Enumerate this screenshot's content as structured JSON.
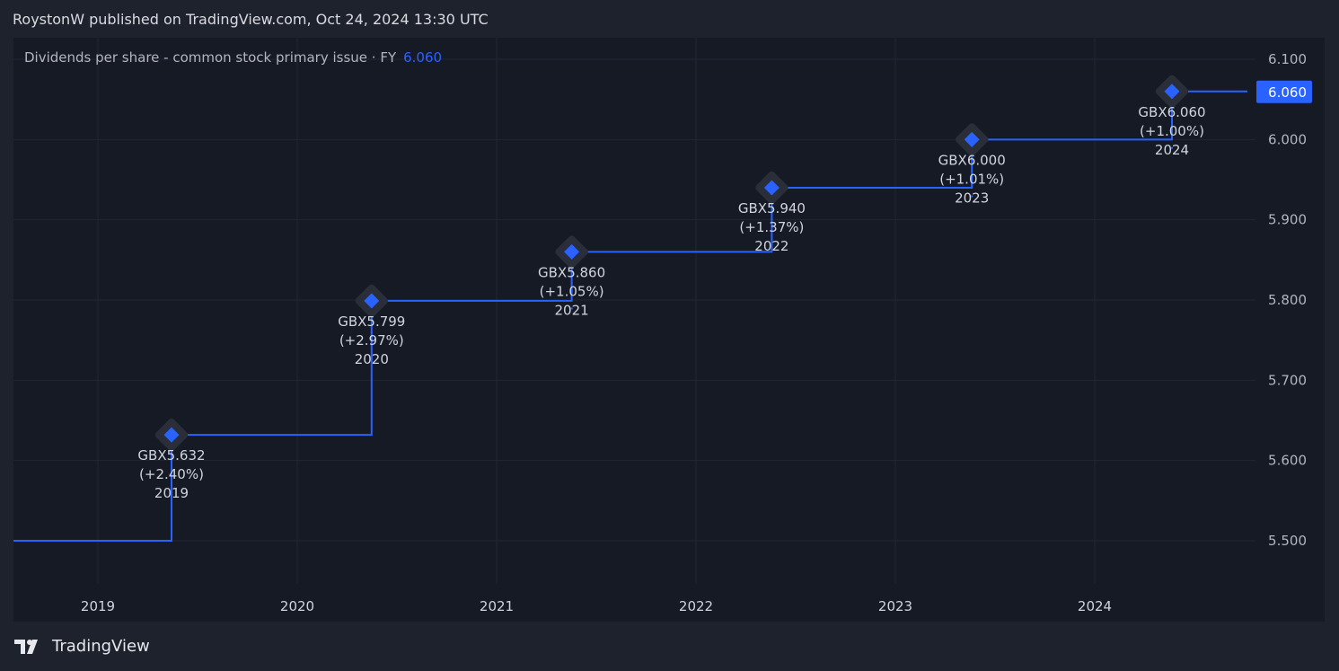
{
  "header": {
    "published": "RoystonW published on TradingView.com, Oct 24, 2024 13:30 UTC"
  },
  "legend": {
    "label": "Dividends per share - common stock primary issue · FY",
    "value": "6.060"
  },
  "brand": {
    "name": "TradingView"
  },
  "colors": {
    "line": "#2962ff",
    "bg": "#161a25"
  },
  "chart_data": {
    "type": "line",
    "step": true,
    "title": "Dividends per share - common stock primary issue · FY",
    "currency": "GBX",
    "start_value": 5.5,
    "points": [
      {
        "year": "2019",
        "value": 5.632,
        "label": "GBX5.632",
        "change": "(+2.40%)"
      },
      {
        "year": "2020",
        "value": 5.799,
        "label": "GBX5.799",
        "change": "(+2.97%)"
      },
      {
        "year": "2021",
        "value": 5.86,
        "label": "GBX5.860",
        "change": "(+1.05%)"
      },
      {
        "year": "2022",
        "value": 5.94,
        "label": "GBX5.940",
        "change": "(+1.37%)"
      },
      {
        "year": "2023",
        "value": 6.0,
        "label": "GBX6.000",
        "change": "(+1.01%)"
      },
      {
        "year": "2024",
        "value": 6.06,
        "label": "GBX6.060",
        "change": "(+1.00%)"
      }
    ],
    "x_ticks": [
      "2019",
      "2020",
      "2021",
      "2022",
      "2023",
      "2024"
    ],
    "y_ticks": [
      "5.500",
      "5.600",
      "5.700",
      "5.800",
      "5.900",
      "6.000",
      "6.100"
    ],
    "ylim": [
      5.5,
      6.1
    ],
    "last_value_label": "6.060",
    "grid": true
  }
}
